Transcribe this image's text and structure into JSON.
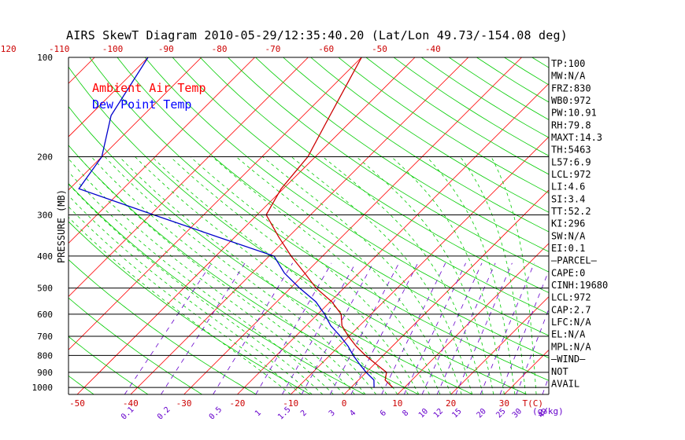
{
  "chart_data": {
    "type": "line",
    "title": "AIRS SkewT Diagram 2010-05-29/12:35:40.20 (Lat/Lon 49.73/-154.08 deg)",
    "ylabel": "PRESSURE (MB)",
    "xlabel_right": "T(C)",
    "mixing_ratio_unit": "(g/kg)",
    "y_scale": "log",
    "ylim": [
      1050,
      100
    ],
    "xlim": [
      -50,
      40
    ],
    "grid": true,
    "pressure_ticks": [
      100,
      200,
      300,
      400,
      500,
      600,
      700,
      800,
      900,
      1000
    ],
    "temp_ticks_bottom": [
      -50,
      -40,
      -30,
      -20,
      -10,
      0,
      10,
      20,
      30
    ],
    "temp_ticks_top": [
      -120,
      -110,
      -100,
      -90,
      -80,
      -70,
      -60,
      -50,
      -40
    ],
    "mixing_ratio_ticks": [
      "0.1",
      "0.2",
      "0.5",
      "1",
      "1.5",
      "2",
      "3",
      "4",
      "6",
      "8",
      "10",
      "12",
      "15",
      "20",
      "25",
      "30",
      "40"
    ],
    "legend": [
      {
        "name": "Ambient Air Temp",
        "color": "#ff0000"
      },
      {
        "name": "Dew Point Temp",
        "color": "#0000ff"
      }
    ],
    "legend_position": "top-left",
    "series": [
      {
        "name": "Ambient Air Temp",
        "color": "#cc0000",
        "points": [
          {
            "p": 1000,
            "t": 7.8
          },
          {
            "p": 950,
            "t": 5.0
          },
          {
            "p": 900,
            "t": 3.8
          },
          {
            "p": 850,
            "t": 0.3
          },
          {
            "p": 800,
            "t": -3.3
          },
          {
            "p": 750,
            "t": -6.8
          },
          {
            "p": 700,
            "t": -10.1
          },
          {
            "p": 650,
            "t": -13.3
          },
          {
            "p": 600,
            "t": -15.6
          },
          {
            "p": 550,
            "t": -19.7
          },
          {
            "p": 500,
            "t": -25.2
          },
          {
            "p": 450,
            "t": -30.2
          },
          {
            "p": 400,
            "t": -35.9
          },
          {
            "p": 350,
            "t": -41.8
          },
          {
            "p": 300,
            "t": -48.3
          },
          {
            "p": 250,
            "t": -50.4
          },
          {
            "p": 200,
            "t": -51.4
          },
          {
            "p": 150,
            "t": -55.0
          },
          {
            "p": 100,
            "t": -60.0
          }
        ]
      },
      {
        "name": "Dew Point Temp",
        "color": "#0000cc",
        "points": [
          {
            "p": 1000,
            "t": 4.3
          },
          {
            "p": 950,
            "t": 2.9
          },
          {
            "p": 900,
            "t": 0.0
          },
          {
            "p": 850,
            "t": -2.8
          },
          {
            "p": 800,
            "t": -5.6
          },
          {
            "p": 750,
            "t": -8.3
          },
          {
            "p": 700,
            "t": -11.6
          },
          {
            "p": 650,
            "t": -15.4
          },
          {
            "p": 600,
            "t": -18.7
          },
          {
            "p": 550,
            "t": -22.7
          },
          {
            "p": 500,
            "t": -28.3
          },
          {
            "p": 450,
            "t": -34.0
          },
          {
            "p": 400,
            "t": -39.1
          },
          {
            "p": 350,
            "t": -53.2
          },
          {
            "p": 300,
            "t": -69.4
          },
          {
            "p": 250,
            "t": -88.3
          },
          {
            "p": 200,
            "t": -90.0
          },
          {
            "p": 150,
            "t": -96.0
          },
          {
            "p": 100,
            "t": -100.0
          }
        ]
      }
    ]
  },
  "stats": [
    "TP:100",
    "MW:N/A",
    "FRZ:830",
    "WB0:972",
    "PW:10.91",
    "RH:79.8",
    "MAXT:14.3",
    "TH:5463",
    "L57:6.9",
    "LCL:972",
    "LI:4.6",
    "SI:3.4",
    "TT:52.2",
    "KI:296",
    "SW:N/A",
    "EI:0.1",
    "—PARCEL—",
    "CAPE:0",
    "CINH:19680",
    "LCL:972",
    "CAP:2.7",
    "LFC:N/A",
    "EL:N/A",
    "MPL:N/A",
    "—WIND—",
    "NOT",
    "AVAIL"
  ],
  "colors": {
    "isotherm": "#ff0000",
    "dry_adiabat": "#00cc00",
    "moist_adiabat": "#00cc00",
    "mixing_ratio": "#6600cc",
    "isobar": "#000000",
    "title": "#000000",
    "temp_tick_label": "#cc0000",
    "mixing_ratio_label": "#6600cc"
  }
}
